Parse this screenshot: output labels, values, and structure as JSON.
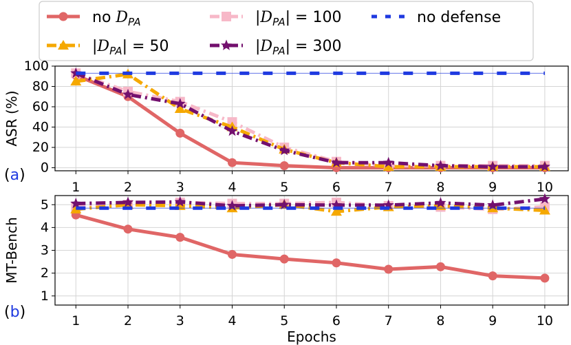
{
  "legend": {
    "entries": [
      {
        "prefix": "no ",
        "D": "D",
        "sub": "PA",
        "suffix": "",
        "key": "no_dpa"
      },
      {
        "prefix": "|",
        "D": "D",
        "sub": "PA",
        "suffix": "| = 100",
        "key": "dpa100"
      },
      {
        "prefix": "",
        "D": "",
        "sub": "",
        "suffix": "no defense",
        "key": "no_defense"
      },
      {
        "prefix": "|",
        "D": "D",
        "sub": "PA",
        "suffix": "| = 50",
        "key": "dpa50"
      },
      {
        "prefix": "|",
        "D": "D",
        "sub": "PA",
        "suffix": "| = 300",
        "key": "dpa300"
      }
    ]
  },
  "colors": {
    "no_dpa": "#e06666",
    "dpa50": "#f5a800",
    "dpa100": "#f7b8c8",
    "dpa300": "#73106e",
    "no_defense": "#1f3ae0"
  },
  "chart_data": [
    {
      "type": "line",
      "panel_label": "(a)",
      "panel_open": "(",
      "panel_letter": "a",
      "panel_close": ")",
      "ylabel": "ASR (%)",
      "xlabel": "",
      "x": [
        1,
        2,
        3,
        4,
        5,
        6,
        7,
        8,
        9,
        10
      ],
      "xticks": [
        "1",
        "2",
        "3",
        "4",
        "5",
        "6",
        "7",
        "8",
        "9",
        "10"
      ],
      "ylim": [
        -3,
        100
      ],
      "yticks": [
        0,
        20,
        40,
        60,
        80,
        100
      ],
      "grid": true,
      "series": [
        {
          "name": "no D_PA",
          "key": "no_dpa",
          "values": [
            91,
            70,
            34,
            5,
            2,
            0,
            0,
            0,
            0,
            0
          ]
        },
        {
          "name": "|D_PA| = 100",
          "key": "dpa100",
          "values": [
            93,
            75,
            65,
            45,
            20,
            6,
            2,
            2,
            2,
            2
          ]
        },
        {
          "name": "|D_PA| = 50",
          "key": "dpa50",
          "values": [
            85,
            92,
            58,
            40,
            18,
            5,
            1,
            1,
            1,
            1
          ]
        },
        {
          "name": "|D_PA| = 300",
          "key": "dpa300",
          "values": [
            93,
            72,
            63,
            36,
            17,
            5,
            5,
            2,
            1,
            1
          ]
        },
        {
          "name": "no defense",
          "key": "no_defense",
          "values": [
            93,
            93,
            93,
            93,
            93,
            93,
            93,
            93,
            93,
            93
          ]
        }
      ]
    },
    {
      "type": "line",
      "panel_label": "(b)",
      "panel_open": "(",
      "panel_letter": "b",
      "panel_close": ")",
      "ylabel": "MT-Bench",
      "xlabel": "Epochs",
      "x": [
        1,
        2,
        3,
        4,
        5,
        6,
        7,
        8,
        9,
        10
      ],
      "xticks": [
        "1",
        "2",
        "3",
        "4",
        "5",
        "6",
        "7",
        "8",
        "9",
        "10"
      ],
      "ylim": [
        0.6,
        5.4
      ],
      "yticks": [
        1,
        2,
        3,
        4,
        5
      ],
      "grid": true,
      "series": [
        {
          "name": "no D_PA",
          "key": "no_dpa",
          "values": [
            4.55,
            3.93,
            3.57,
            2.82,
            2.62,
            2.45,
            2.17,
            2.28,
            1.88,
            1.78
          ]
        },
        {
          "name": "|D_PA| = 100",
          "key": "dpa100",
          "values": [
            4.9,
            5.0,
            5.1,
            5.05,
            5.05,
            5.1,
            4.95,
            4.9,
            4.8,
            4.9
          ]
        },
        {
          "name": "|D_PA| = 50",
          "key": "dpa50",
          "values": [
            4.8,
            5.0,
            4.95,
            4.85,
            5.0,
            4.7,
            4.9,
            4.95,
            4.85,
            4.75
          ]
        },
        {
          "name": "|D_PA| = 300",
          "key": "dpa300",
          "values": [
            5.05,
            5.1,
            5.12,
            4.95,
            5.0,
            4.98,
            4.98,
            5.08,
            4.98,
            5.25
          ]
        },
        {
          "name": "no defense",
          "key": "no_defense",
          "values": [
            4.85,
            4.85,
            4.85,
            4.85,
            4.85,
            4.85,
            4.85,
            4.85,
            4.85,
            4.85
          ]
        }
      ]
    }
  ]
}
